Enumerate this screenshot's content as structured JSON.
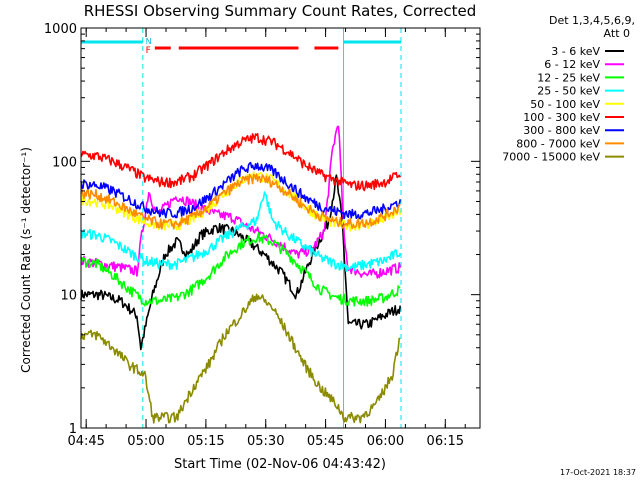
{
  "chart_data": {
    "type": "line",
    "title": "RHESSI Observing Summary Count Rates, Corrected",
    "xlabel": "Start Time (02-Nov-06 04:43:42)",
    "ylabel": "Corrected Count Rate (s⁻¹ detector⁻¹)",
    "yscale": "log",
    "ylim": [
      1,
      1000
    ],
    "xlim": [
      0,
      100
    ],
    "y_ticks": [
      1,
      10,
      100,
      1000
    ],
    "y_tick_labels": [
      "1",
      "10",
      "100",
      "1000"
    ],
    "x_ticks": [
      1.3,
      16.3,
      31.3,
      46.3,
      61.3,
      76.3,
      91.3
    ],
    "x_tick_labels": [
      "04:45",
      "05:00",
      "05:15",
      "05:30",
      "05:45",
      "06:00",
      "06:15"
    ],
    "x_tick_unit": "minutes after 04:43:42",
    "legend": {
      "header_lines": [
        "Det 1,3,4,5,6,9,",
        "Att 0"
      ],
      "placement": "right"
    },
    "flag_labels": [
      "N",
      "F"
    ],
    "flags": [
      {
        "name": "N",
        "color": "#00e5ee",
        "segments": [
          [
            0,
            15.5
          ],
          [
            65.8,
            80.2
          ]
        ]
      },
      {
        "name": "F",
        "color": "#ff0000",
        "segments": [
          [
            18.5,
            22.5
          ],
          [
            24.5,
            54.5
          ],
          [
            58.5,
            64.5
          ]
        ]
      }
    ],
    "vlines": [
      {
        "x": 0,
        "color": "#00e5ee",
        "style": "solid"
      },
      {
        "x": 15.5,
        "color": "#00e5ee",
        "style": "dashed"
      },
      {
        "x": 65.8,
        "color": "#00e5ee",
        "style": "solid"
      },
      {
        "x": 80.2,
        "color": "#00e5ee",
        "style": "dashed"
      }
    ],
    "series": [
      {
        "name": "3 - 6 keV",
        "color": "#000000",
        "x": [
          0,
          5,
          10,
          14,
          15,
          18,
          21,
          24,
          27,
          30,
          34,
          38,
          42,
          46,
          50,
          54,
          58,
          62,
          64,
          65.5,
          67,
          72,
          76,
          80
        ],
        "y": [
          10,
          10,
          9,
          7,
          4,
          10,
          20,
          25,
          20,
          28,
          32,
          30,
          25,
          20,
          15,
          10,
          20,
          35,
          75,
          35,
          6,
          6,
          7,
          8
        ]
      },
      {
        "name": "6 - 12 keV",
        "color": "#ff00ff",
        "x": [
          0,
          5,
          10,
          14,
          15,
          17,
          19,
          21,
          24,
          27,
          30,
          34,
          38,
          42,
          46,
          50,
          54,
          58,
          61,
          63,
          64.5,
          66,
          67,
          72,
          76,
          80
        ],
        "y": [
          18,
          17,
          16,
          15,
          25,
          60,
          40,
          45,
          55,
          50,
          45,
          40,
          38,
          32,
          28,
          24,
          20,
          22,
          30,
          120,
          200,
          25,
          16,
          14,
          15,
          16
        ]
      },
      {
        "name": "12 - 25 keV",
        "color": "#00ff00",
        "x": [
          0,
          4,
          8,
          12,
          16,
          20,
          24,
          28,
          32,
          36,
          40,
          44,
          48,
          52,
          56,
          60,
          64,
          68,
          72,
          76,
          80
        ],
        "y": [
          18,
          17,
          14,
          11,
          9,
          9,
          9.5,
          11,
          14,
          19,
          24,
          27,
          25,
          20,
          15,
          11,
          9.5,
          9,
          9,
          9.5,
          11
        ]
      },
      {
        "name": "25 - 50 keV",
        "color": "#00ffff",
        "x": [
          0,
          4,
          8,
          12,
          16,
          20,
          24,
          28,
          32,
          36,
          40,
          44,
          46,
          48,
          52,
          56,
          60,
          64,
          68,
          72,
          76,
          80
        ],
        "y": [
          29,
          28,
          25,
          21,
          18,
          17,
          17,
          19,
          22,
          27,
          32,
          36,
          60,
          36,
          28,
          23,
          19,
          17,
          16,
          17,
          18,
          21
        ]
      },
      {
        "name": "50 - 100 keV",
        "color": "#ffff00",
        "x": [
          0,
          4,
          8,
          12,
          16,
          20,
          24,
          28,
          32,
          36,
          40,
          44,
          48,
          52,
          56,
          60,
          64,
          68,
          72,
          76,
          80
        ],
        "y": [
          52,
          50,
          46,
          40,
          35,
          33,
          33,
          37,
          45,
          58,
          72,
          80,
          72,
          58,
          46,
          38,
          34,
          33,
          34,
          37,
          42
        ]
      },
      {
        "name": "100 - 300 keV",
        "color": "#ff0000",
        "x": [
          0,
          4,
          8,
          12,
          16,
          20,
          24,
          28,
          32,
          36,
          40,
          44,
          48,
          52,
          56,
          60,
          64,
          68,
          72,
          76,
          80
        ],
        "y": [
          112,
          110,
          100,
          88,
          75,
          70,
          70,
          78,
          95,
          118,
          140,
          152,
          140,
          118,
          95,
          80,
          72,
          66,
          66,
          70,
          80
        ]
      },
      {
        "name": "300 - 800 keV",
        "color": "#0000ff",
        "x": [
          0,
          4,
          8,
          12,
          16,
          20,
          24,
          28,
          32,
          36,
          40,
          44,
          48,
          52,
          56,
          60,
          64,
          68,
          72,
          76,
          80
        ],
        "y": [
          68,
          66,
          60,
          52,
          45,
          41,
          41,
          45,
          54,
          68,
          85,
          94,
          85,
          68,
          54,
          46,
          42,
          40,
          41,
          44,
          50
        ]
      },
      {
        "name": "800 - 7000 keV",
        "color": "#ff8c00",
        "x": [
          0,
          4,
          8,
          12,
          16,
          20,
          24,
          28,
          32,
          36,
          40,
          44,
          48,
          52,
          56,
          60,
          64,
          68,
          72,
          76,
          80
        ],
        "y": [
          58,
          56,
          50,
          43,
          37,
          34,
          34,
          38,
          46,
          58,
          70,
          76,
          70,
          58,
          46,
          39,
          35,
          34,
          35,
          39,
          46
        ]
      },
      {
        "name": "7000 - 15000 keV",
        "color": "#8b8b00",
        "x": [
          0,
          4,
          8,
          12,
          16,
          18,
          24,
          28,
          32,
          36,
          40,
          44,
          48,
          52,
          56,
          60,
          64,
          66,
          70,
          74,
          78,
          80
        ],
        "y": [
          5,
          5,
          4,
          3,
          2.5,
          1.2,
          1.2,
          2,
          3,
          5,
          7,
          10,
          8,
          5,
          3,
          2,
          1.5,
          1.2,
          1.2,
          1.5,
          2.5,
          5
        ]
      }
    ]
  },
  "timestamp": "17-Oct-2021 18:37"
}
